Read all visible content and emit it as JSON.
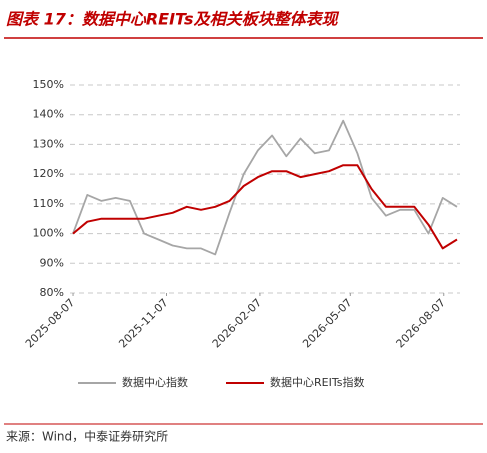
{
  "chart_data": {
    "type": "line",
    "title": "图表 17：数据中心REITs及相关板块整体表现",
    "source": "来源：Wind，中泰证券研究所",
    "x": [
      "2025-08-07",
      "2025-08-21",
      "2025-09-04",
      "2025-09-18",
      "2025-10-02",
      "2025-10-16",
      "2025-10-30",
      "2025-11-13",
      "2025-11-27",
      "2025-12-11",
      "2025-12-25",
      "2026-01-08",
      "2026-01-22",
      "2026-02-05",
      "2026-02-19",
      "2026-03-05",
      "2026-03-19",
      "2026-04-02",
      "2026-04-16",
      "2026-04-30",
      "2026-05-14",
      "2026-05-28",
      "2026-06-11",
      "2026-06-25",
      "2026-07-09",
      "2026-07-23",
      "2026-08-06",
      "2026-08-20"
    ],
    "xlim": [
      "2025-08-04",
      "2026-08-23"
    ],
    "xticks": [
      "2025-08-07",
      "2025-11-07",
      "2026-02-07",
      "2026-05-07",
      "2026-08-07"
    ],
    "series": [
      {
        "name": "数据中心指数",
        "color": "#a6a6a6",
        "values": [
          100,
          113,
          111,
          112,
          111,
          100,
          98,
          96,
          95,
          95,
          93,
          107,
          120,
          128,
          133,
          126,
          132,
          127,
          128,
          138,
          127,
          112,
          106,
          108,
          108,
          100,
          112,
          109
        ]
      },
      {
        "name": "数据中心REITs指数",
        "color": "#c00000",
        "values": [
          100,
          104,
          105,
          105,
          105,
          105,
          106,
          107,
          109,
          108,
          109,
          111,
          116,
          119,
          121,
          121,
          119,
          120,
          121,
          123,
          123,
          115,
          109,
          109,
          109,
          103,
          95,
          98
        ]
      }
    ],
    "ylim": [
      80,
      150
    ],
    "yticks": [
      {
        "value": 80,
        "label": "80%"
      },
      {
        "value": 90,
        "label": "90%"
      },
      {
        "value": 100,
        "label": "100%"
      },
      {
        "value": 110,
        "label": "110%"
      },
      {
        "value": 120,
        "label": "120%"
      },
      {
        "value": 130,
        "label": "130%"
      },
      {
        "value": 140,
        "label": "140%"
      },
      {
        "value": 150,
        "label": "150%"
      }
    ],
    "grid": true
  }
}
